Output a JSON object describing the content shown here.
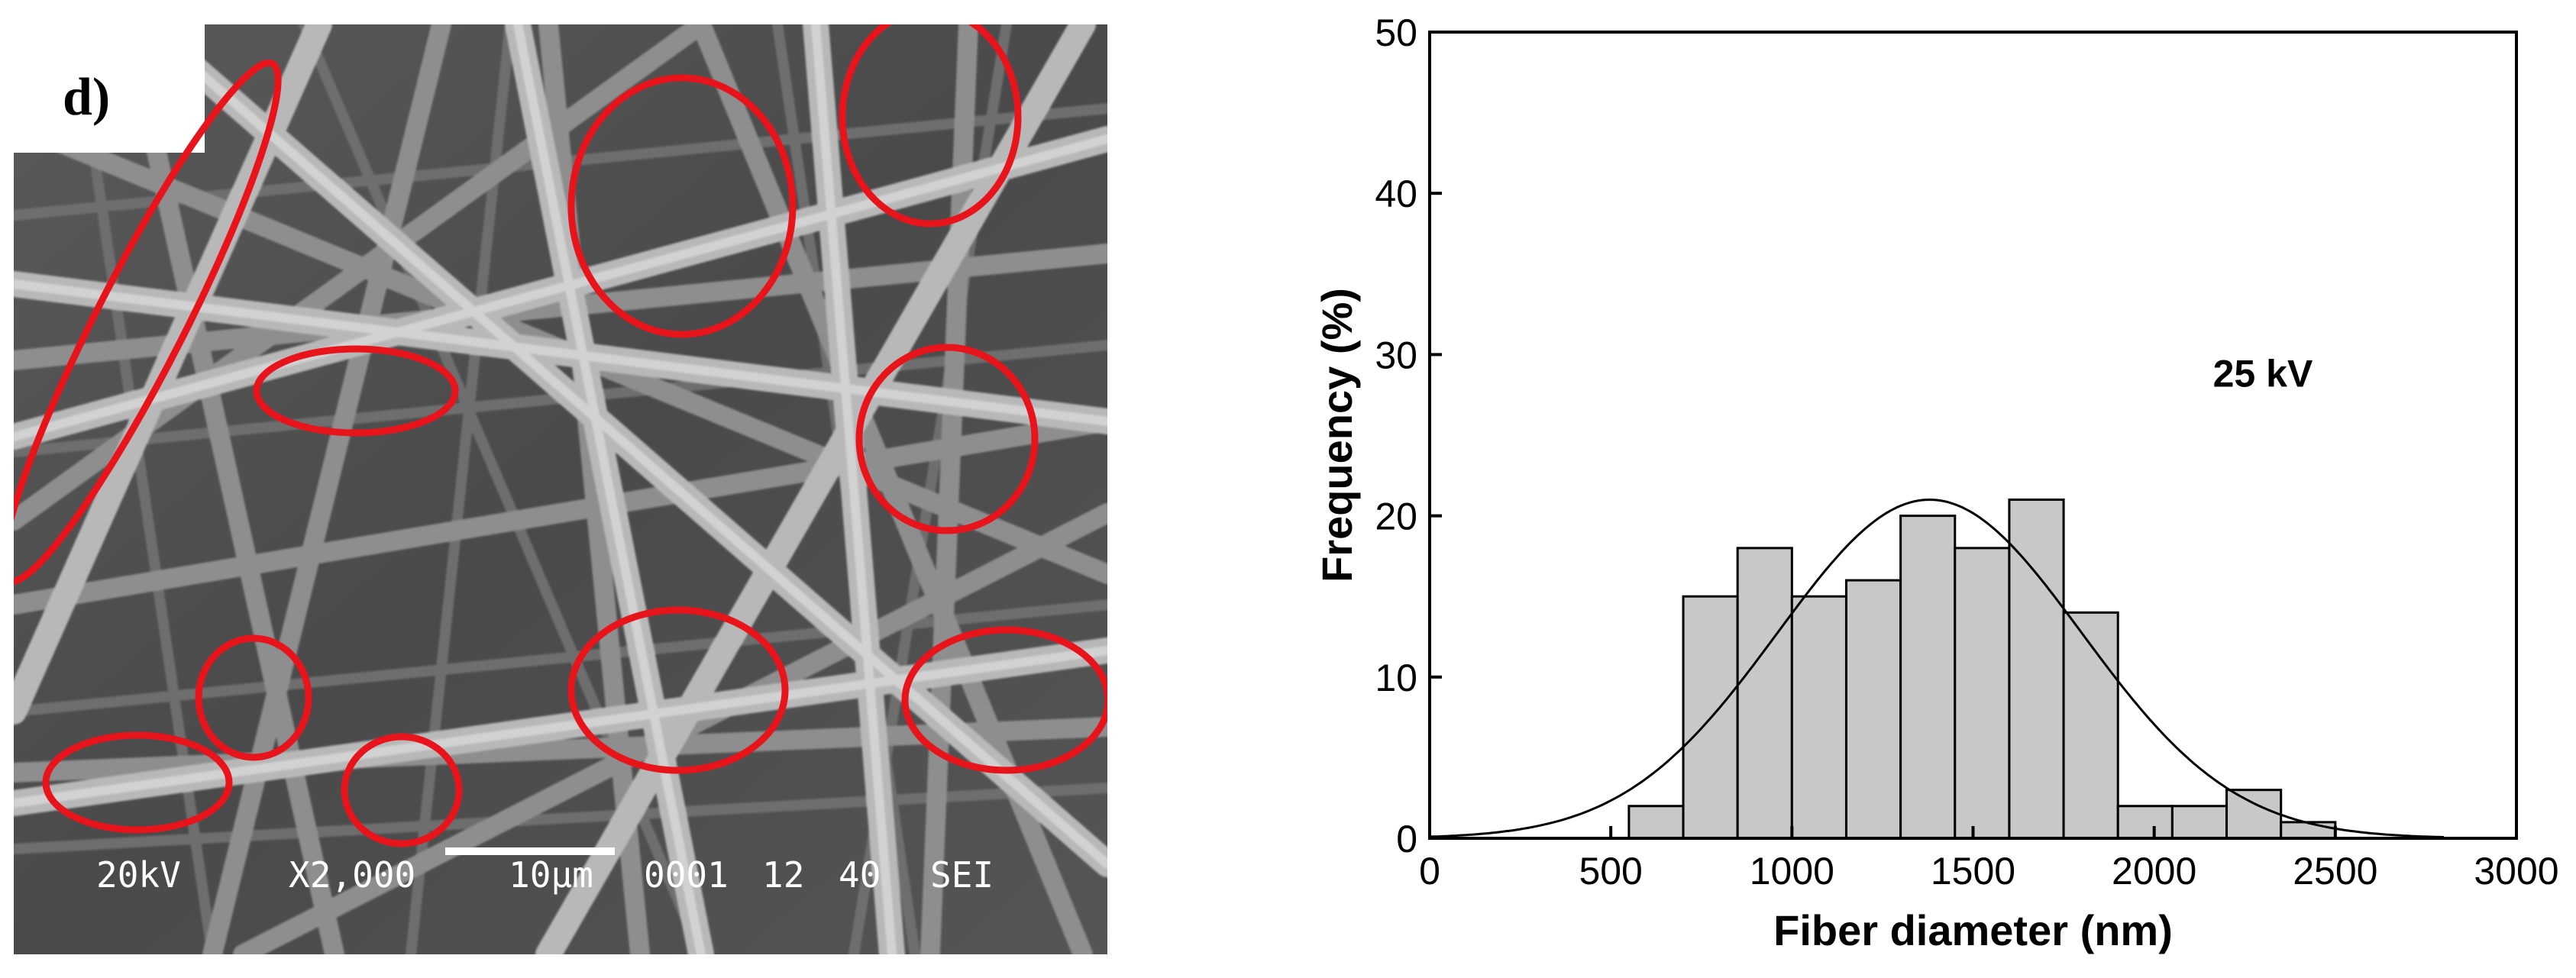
{
  "sem_image": {
    "panel_label": "d)",
    "info_bar": {
      "voltage": "20kV",
      "magnification": "X2,000",
      "scale_label": "10μm",
      "image_number": "0001",
      "working_distance": "12",
      "spot": "40",
      "detector": "SEI"
    },
    "highlight_color": "#e8141b",
    "highlight_ellipse_count": 11
  },
  "chart_data": {
    "type": "bar",
    "variant": "histogram_with_normal_fit",
    "annotation": "25 kV",
    "xlabel": "Fiber diameter (nm)",
    "ylabel": "Frequency (%)",
    "xlim": [
      0,
      3000
    ],
    "ylim": [
      0,
      50
    ],
    "xticks": [
      0,
      500,
      1000,
      1500,
      2000,
      2500,
      3000
    ],
    "yticks": [
      0,
      10,
      20,
      30,
      40,
      50
    ],
    "bins": [
      {
        "from": 550,
        "to": 700,
        "value": 2
      },
      {
        "from": 700,
        "to": 850,
        "value": 15
      },
      {
        "from": 850,
        "to": 1000,
        "value": 18
      },
      {
        "from": 1000,
        "to": 1150,
        "value": 15
      },
      {
        "from": 1150,
        "to": 1300,
        "value": 16
      },
      {
        "from": 1300,
        "to": 1450,
        "value": 20
      },
      {
        "from": 1450,
        "to": 1600,
        "value": 18
      },
      {
        "from": 1600,
        "to": 1750,
        "value": 21
      },
      {
        "from": 1750,
        "to": 1900,
        "value": 14
      },
      {
        "from": 1900,
        "to": 2050,
        "value": 2
      },
      {
        "from": 2050,
        "to": 2200,
        "value": 2
      },
      {
        "from": 2200,
        "to": 2350,
        "value": 3
      },
      {
        "from": 2350,
        "to": 2500,
        "value": 1
      }
    ],
    "fit_curve": {
      "type": "normal",
      "mean": 1380,
      "sd": 420,
      "peak": 21,
      "x_range": [
        0,
        2800
      ]
    },
    "bar_fill": "#c8c8c8",
    "bar_stroke": "#000000",
    "grid": false,
    "legend": "none"
  }
}
